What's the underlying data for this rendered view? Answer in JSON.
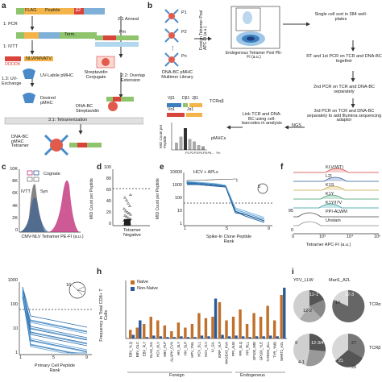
{
  "panel_a": {
    "letter": "a",
    "steps": [
      {
        "label": "1: PCR"
      },
      {
        "label": "1: IVTT"
      },
      {
        "label": "1.3: UV-Exchange"
      },
      {
        "label": "2.1 Anneal"
      },
      {
        "label": "2.2: Overlap Extension"
      },
      {
        "label": "3.1: Tetramerization"
      }
    ],
    "construct_segments": [
      "FLAG",
      "Peptide",
      "β2"
    ],
    "term_label": "Term.",
    "ddddk_label": "DDDDK",
    "nlv_label": "NLVPMVATV",
    "uv_pmhc_label": "UV-Labile pMHC",
    "desired_pmhc_label": "Desired pMHC",
    "strep_conjugate_label": "Streptavidin Conjugate",
    "dnabc_strep_label": "DNA-BC Streptavidin",
    "tetramer_label": "DNA-BC pMHC Tetramer",
    "pm_label": "Pm",
    "p1_label": "P1"
  },
  "panel_b": {
    "letter": "b",
    "pool_labels": [
      "P1",
      "P2",
      "Pn"
    ],
    "library_label": "DNA-BC pMHC Multimer Library",
    "yaxis_label": "Foreign Tetramer Pool APC-FI (a.u.)",
    "xaxis_label": "Endogenous Tetramer Pool PE-FI (a.u.)",
    "sort_label": "Single cell sort in 384 well-plates",
    "rt_label": "RT and 1st PCR on TCR and DNA-BC together",
    "pcr2_label": "2nd PCR on TCR and DNA-BC separately",
    "pcr3_label": "3rd PCR on TCR and DNA-BC separately to add Illumina sequencing adaptor",
    "ngs_label": "NGS",
    "link_label": "Link TCR and DNA-BC using cell-barcodes in analysis",
    "tcr_label": "TCRαβ",
    "pmhc_label": "pMHCs",
    "mid_label": "MID Count per Peptide",
    "segment_labels": [
      "Vβ1",
      "Dβ1",
      "Jβ1",
      "Vα1",
      "Jα1"
    ],
    "bar_labels": [
      "P1",
      "P2",
      "P3",
      "P4",
      "P5",
      "P6",
      "...",
      "Pn"
    ],
    "bar_values": [
      0.3,
      0.55,
      0.9,
      0.45,
      0.35,
      0.2,
      0.15
    ]
  },
  "panel_c": {
    "letter": "c",
    "legend_cognate": "Cognate",
    "legend_ivtt": "IVTT",
    "legend_syn": "Syn",
    "xaxis_label": "CMV-NLV Tetramer PE-FI (a.u.)",
    "ylabel": "Count",
    "yticks": [
      "10K",
      "8K",
      "6K",
      "4K",
      "2K",
      "0"
    ]
  },
  "panel_d": {
    "letter": "d",
    "ylabel": "MID Count per Peptide",
    "yticks": [
      "100",
      "80",
      "60",
      "40",
      "20",
      "0"
    ],
    "xlabel": "Tetramer Negative"
  },
  "panel_e": {
    "letter": "e",
    "legend": "HCV + APLs",
    "circle_label": "5",
    "ylabel": "MID Count per Peptide",
    "yticks": [
      "10000",
      "1000",
      "100",
      "10",
      "1"
    ],
    "xticks": [
      "1",
      "5",
      "9"
    ],
    "xlabel": "Spike-In Clone Peptide Rank"
  },
  "panel_f": {
    "letter": "f",
    "labels": [
      "KLV(WT)",
      "L2I",
      "K1S",
      "K1Y",
      "K1Y/I7V",
      "PPI-ALWM",
      "Unstain"
    ],
    "yticks": [
      "95",
      "0"
    ],
    "xlabel": "Tetramer APC-FI (a.u.)",
    "xticks": [
      "0",
      "10³",
      "10⁴",
      "10⁵"
    ]
  },
  "panel_g": {
    "circle_label": "16",
    "ylabel": "MID Count per Peptide",
    "yticks": [
      "1000",
      "100",
      "10",
      "1"
    ],
    "xticks": [
      "1",
      "5",
      "9"
    ],
    "xlabel": "Primary Cell Peptide Rank"
  },
  "panel_h": {
    "letter": "h",
    "legend_naive": "Naive",
    "legend_non_naive": "Non-Naive",
    "ylabel": "Frequency in Total CD8+ T Cells",
    "group_foreign": "Foreign",
    "group_endogenous": "Endogenous",
    "categories": [
      "EBV_YLQ",
      "EBV_GLC",
      "EBV_FLY",
      "GLAS_GIL",
      "HCV_KLV",
      "HBV_FLP",
      "ALAPH_CVN",
      "HIV_SLY",
      "HIV_SLP",
      "HPV_YML",
      "HCV_SLL",
      "HCV_YLV",
      "IV_GIL",
      "IGRP_VLF",
      "MAGEA3_KVA",
      "PPI_ALW",
      "PPI_SLQ",
      "PPI_RLL",
      "GP100_IMD",
      "GP100_YLE",
      "NYESO_SLL",
      "TYR_YMD",
      "MART1_A2L"
    ],
    "naive": [
      0.12,
      0.15,
      0.2,
      0.3,
      0.25,
      0.18,
      0.1,
      0.22,
      0.15,
      0.2,
      0.35,
      0.28,
      0.3,
      0.5,
      0.25,
      0.3,
      0.4,
      0.2,
      0.35,
      0.3,
      0.45,
      0.25,
      0.6
    ],
    "non_naive": [
      0.05,
      0.25,
      0.02,
      0.04,
      0.03,
      0.02,
      0.02,
      0.03,
      0.02,
      0.02,
      0.04,
      0.03,
      0.55,
      0.05,
      0.03,
      0.04,
      0.03,
      0.02,
      0.03,
      0.03,
      0.04,
      0.03,
      0.7
    ]
  },
  "panel_i": {
    "letter": "i",
    "titles": [
      "YFV_LLW",
      "Mart1_A2L"
    ],
    "row_labels": [
      "TCRα",
      "TCRβ"
    ],
    "pie_labels": [
      "12-1",
      "12-2",
      "12-3",
      "14",
      "9",
      "12-3/4",
      "4-1",
      "27",
      "21",
      "28"
    ]
  },
  "colors": {
    "naive": "#c0702a",
    "non_naive": "#2a5a9a",
    "accent_red": "#d9443a",
    "accent_blue": "#3a7ec0",
    "magenta": "#c0307a"
  }
}
